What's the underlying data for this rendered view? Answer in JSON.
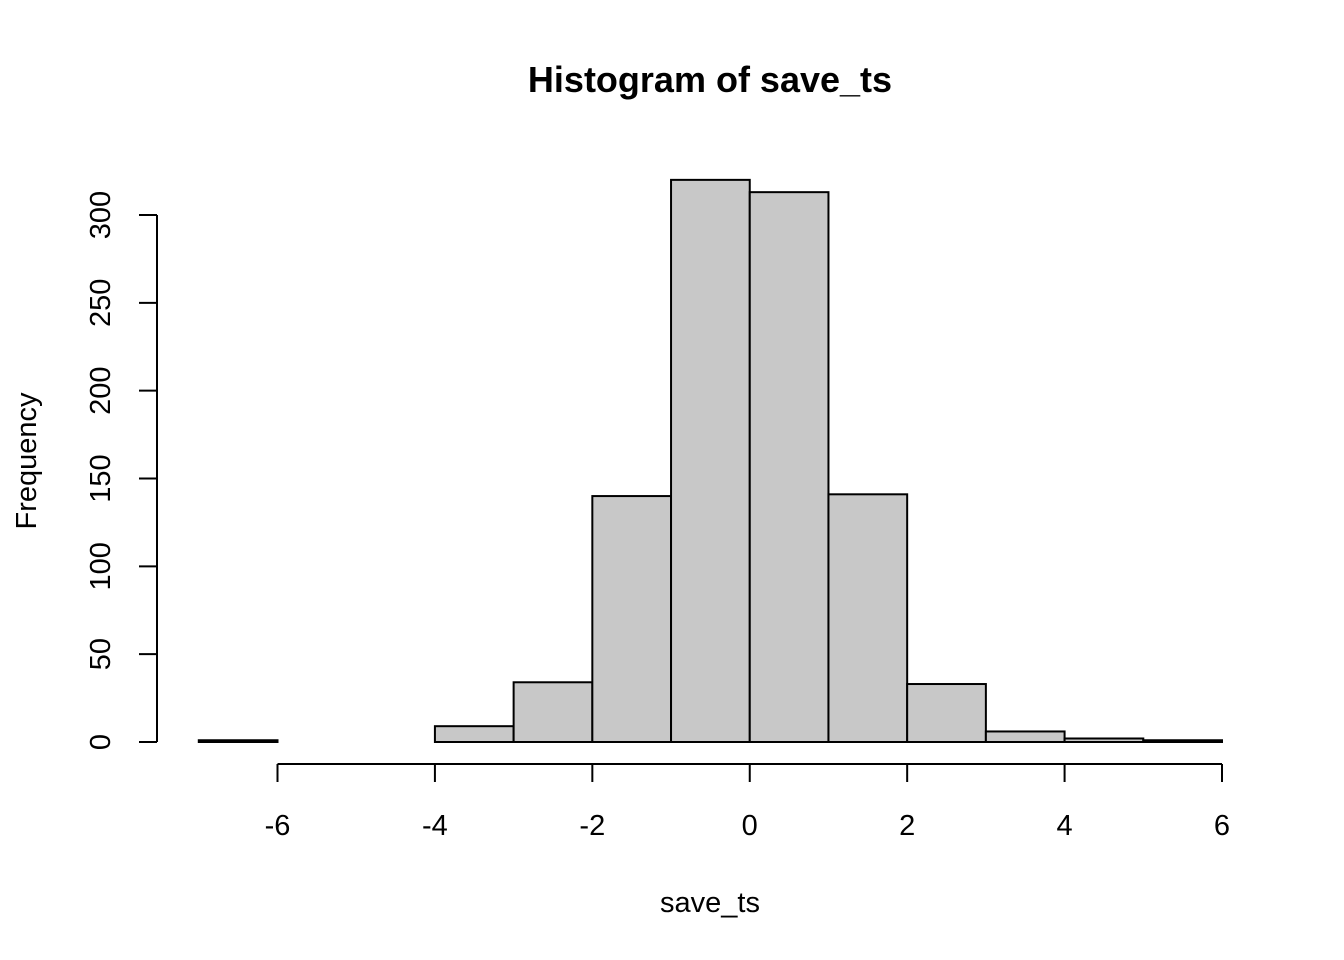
{
  "chart_data": {
    "type": "bar",
    "title": "Histogram of save_ts",
    "xlabel": "save_ts",
    "ylabel": "Frequency",
    "bar_color": "#c8c8c8",
    "edge_color": "#000000",
    "bins": [
      {
        "start": -7,
        "end": -6,
        "count": 1
      },
      {
        "start": -6,
        "end": -5,
        "count": 0
      },
      {
        "start": -5,
        "end": -4,
        "count": 0
      },
      {
        "start": -4,
        "end": -3,
        "count": 9
      },
      {
        "start": -3,
        "end": -2,
        "count": 34
      },
      {
        "start": -2,
        "end": -1,
        "count": 140
      },
      {
        "start": -1,
        "end": 0,
        "count": 320
      },
      {
        "start": 0,
        "end": 1,
        "count": 313
      },
      {
        "start": 1,
        "end": 2,
        "count": 141
      },
      {
        "start": 2,
        "end": 3,
        "count": 33
      },
      {
        "start": 3,
        "end": 4,
        "count": 6
      },
      {
        "start": 4,
        "end": 5,
        "count": 2
      },
      {
        "start": 5,
        "end": 6,
        "count": 1
      }
    ],
    "xlim": [
      -7,
      6
    ],
    "ylim": [
      0,
      320
    ],
    "x_ticks": [
      -6,
      -4,
      -2,
      0,
      2,
      4,
      6
    ],
    "x_tick_labels": [
      "-6",
      "-4",
      "-2",
      "0",
      "2",
      "4",
      "6"
    ],
    "y_ticks": [
      0,
      50,
      100,
      150,
      200,
      250,
      300
    ],
    "y_tick_labels": [
      "0",
      "50",
      "100",
      "150",
      "200",
      "250",
      "300"
    ],
    "grid": false
  }
}
